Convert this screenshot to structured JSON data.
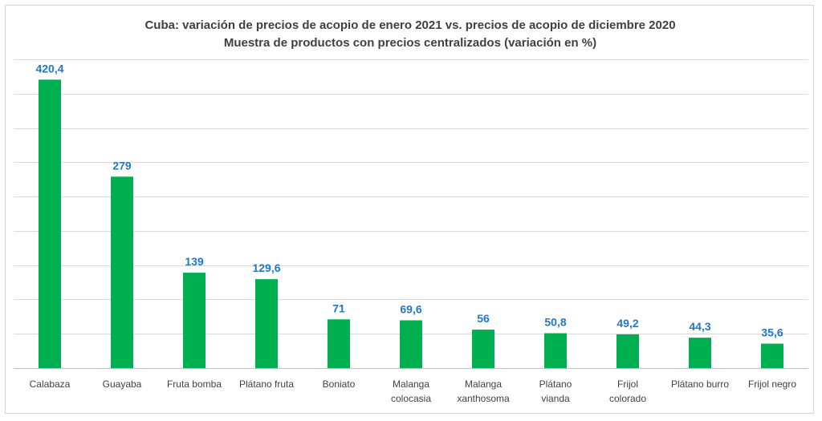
{
  "chart_data": {
    "type": "bar",
    "title": "Cuba: variación de precios de acopio de enero 2021 vs. precios de acopio de diciembre 2020",
    "subtitle": "Muestra de productos con precios centralizados (variación en %)",
    "categories": [
      [
        "Calabaza"
      ],
      [
        "Guayaba"
      ],
      [
        "Fruta bomba"
      ],
      [
        "Plátano fruta"
      ],
      [
        "Boniato"
      ],
      [
        "Malanga",
        "colocasia"
      ],
      [
        "Malanga",
        "xanthosoma"
      ],
      [
        "Plátano",
        "vianda"
      ],
      [
        "Frijol",
        "colorado"
      ],
      [
        "Plátano burro"
      ],
      [
        "Frijol negro"
      ]
    ],
    "values": [
      420.4,
      279,
      139,
      129.6,
      71,
      69.6,
      56,
      50.8,
      49.2,
      44.3,
      35.6
    ],
    "value_labels": [
      "420,4",
      "279",
      "139",
      "129,6",
      "71",
      "69,6",
      "56",
      "50,8",
      "49,2",
      "44,3",
      "35,6"
    ],
    "ylim": [
      0,
      450
    ],
    "grid": true,
    "legend": "none",
    "colors": {
      "bar": "#00b050",
      "data_label": "#1f78c8",
      "text": "#404040"
    }
  }
}
